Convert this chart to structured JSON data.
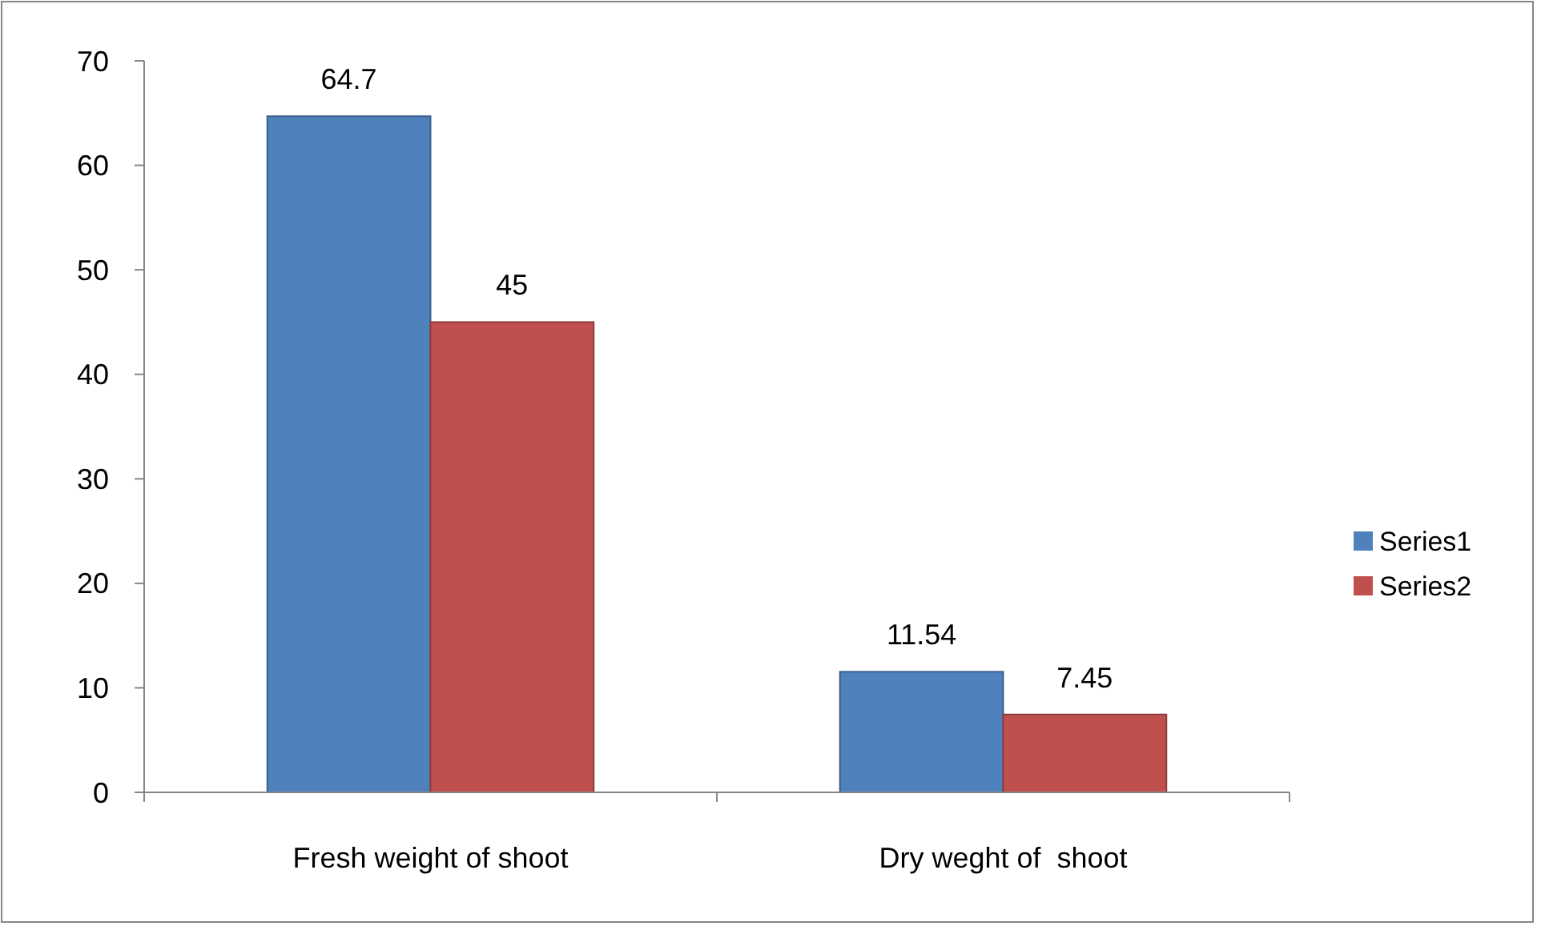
{
  "chart_data": {
    "type": "bar",
    "categories": [
      "Fresh weight of shoot",
      "Dry weght of  shoot"
    ],
    "series": [
      {
        "name": "Series1",
        "color": "#4f81bd",
        "values": [
          64.7,
          11.54
        ]
      },
      {
        "name": "Series2",
        "color": "#c0504d",
        "values": [
          45,
          7.45
        ]
      }
    ],
    "ylim": [
      0,
      70
    ],
    "yticks": [
      0,
      10,
      20,
      30,
      40,
      50,
      60,
      70
    ],
    "grid": false,
    "legend": "right",
    "data_labels": true
  }
}
